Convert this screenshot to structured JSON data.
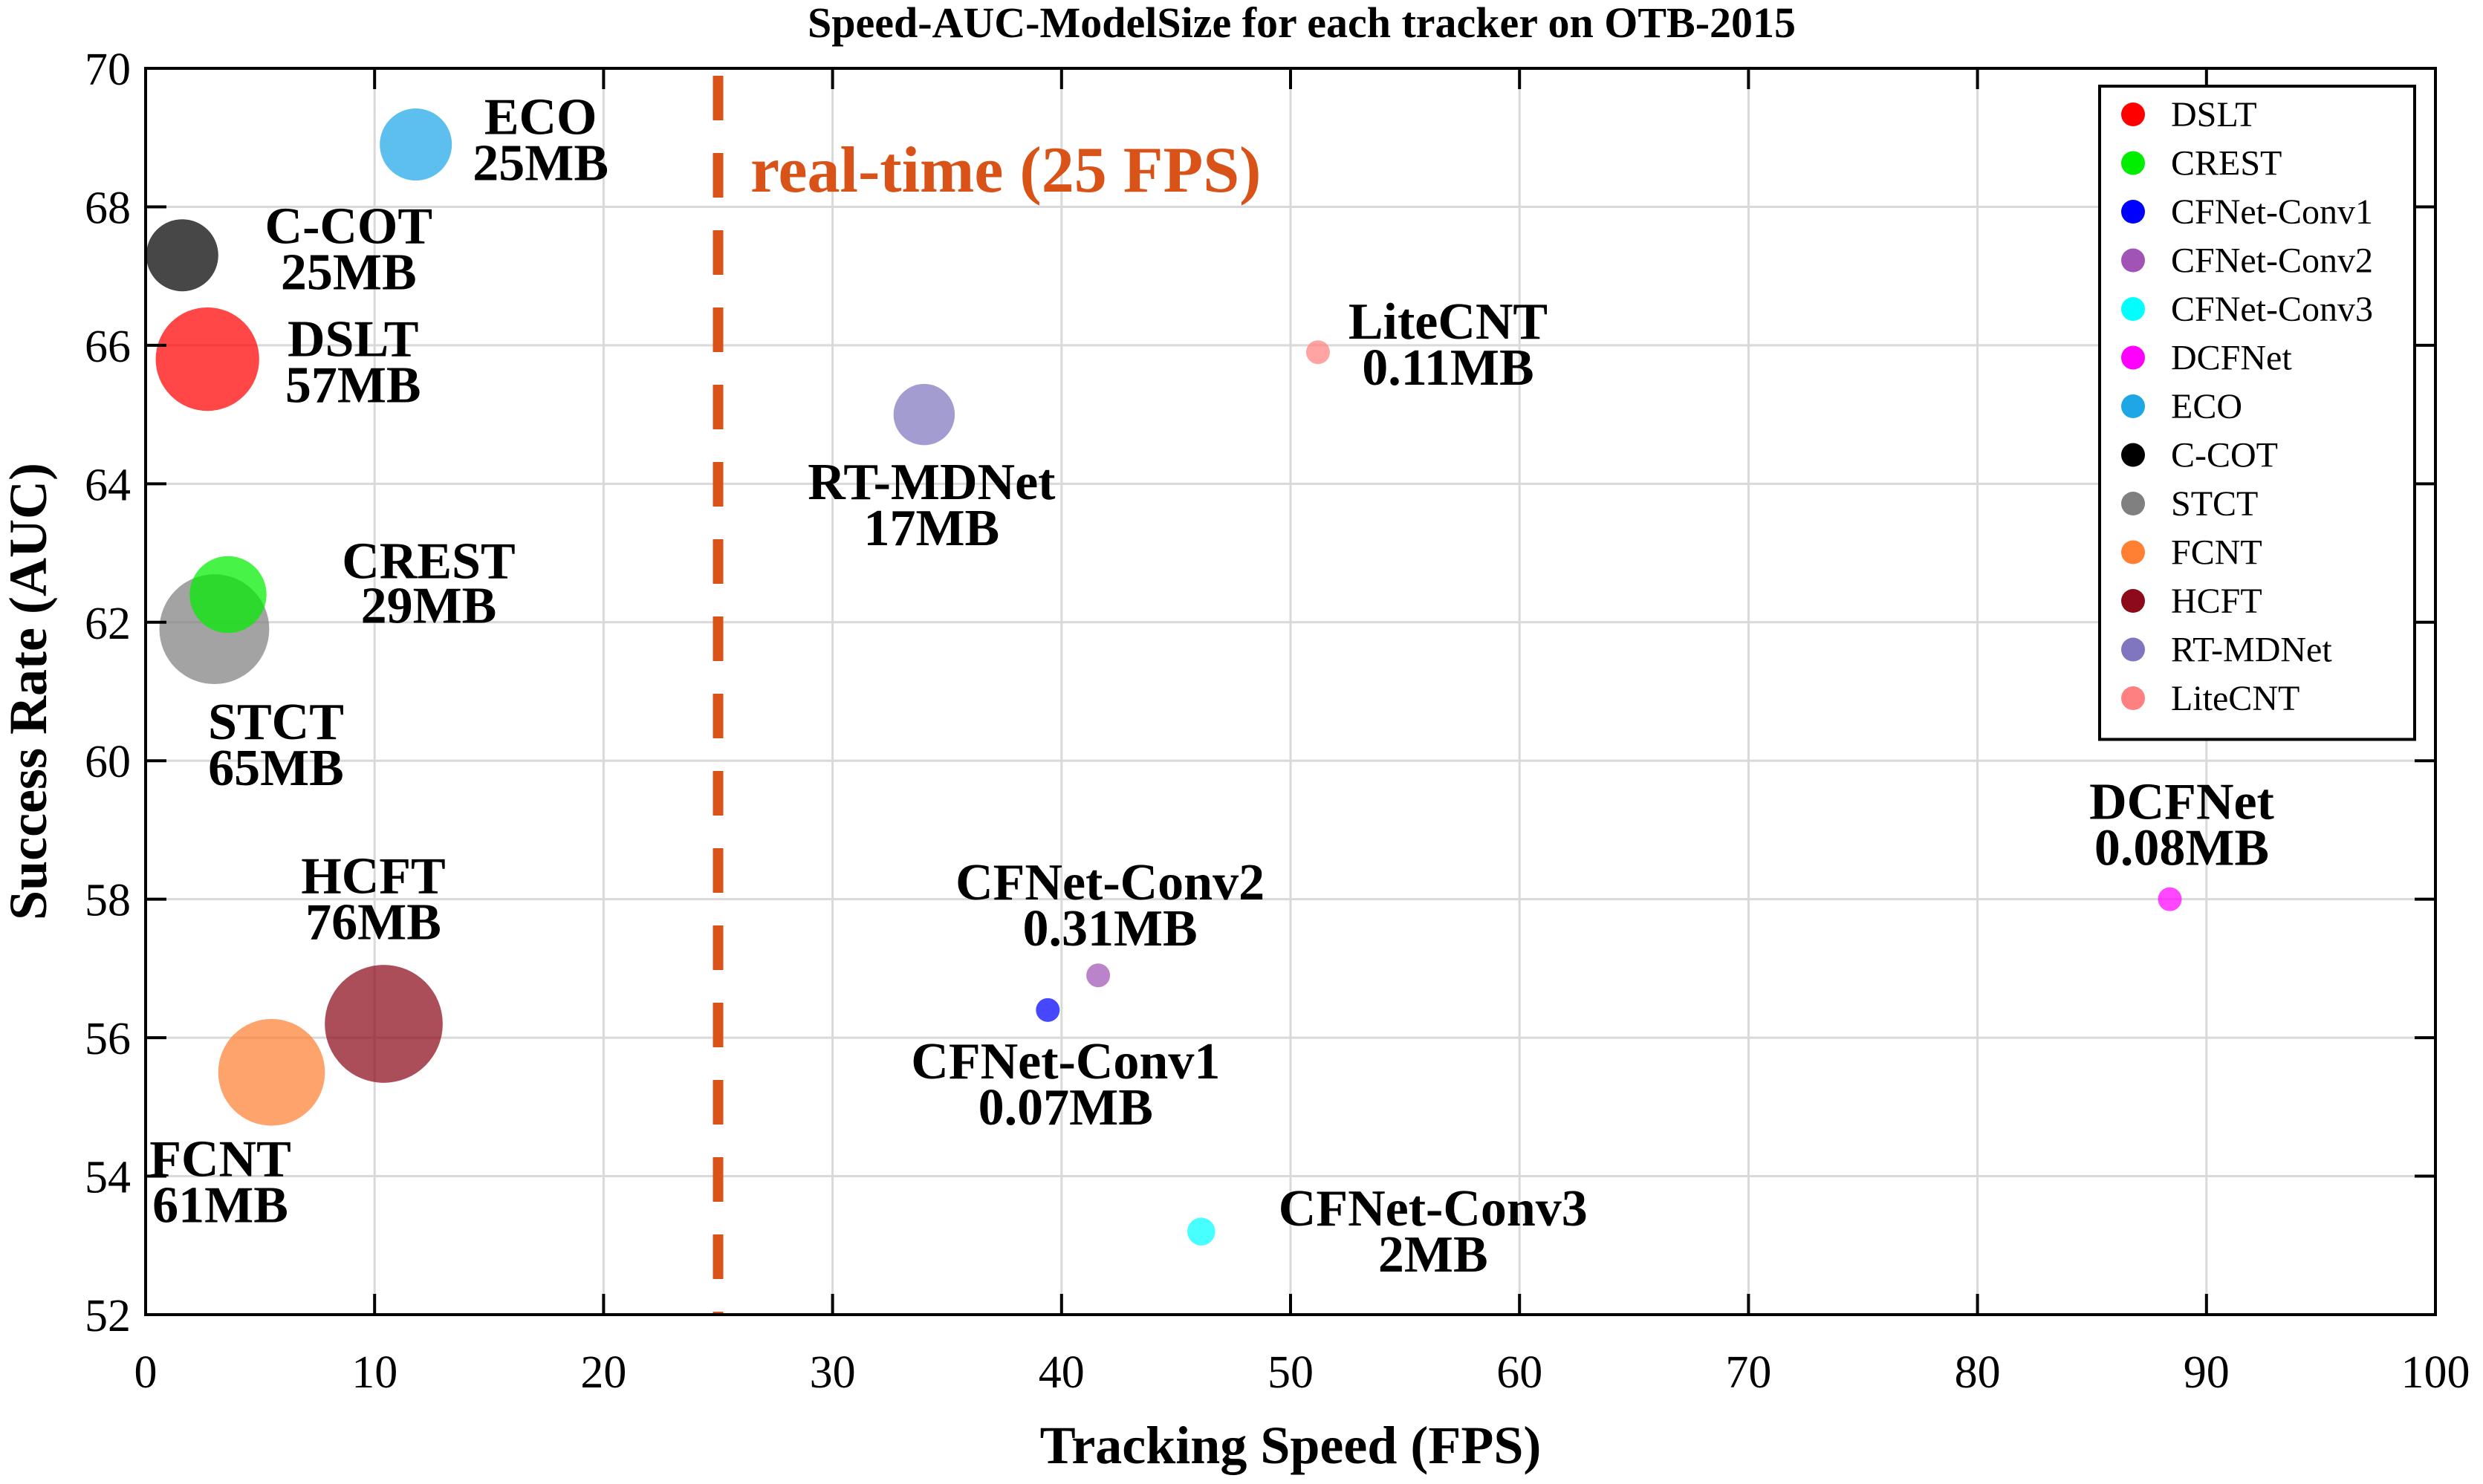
{
  "chart_data": {
    "type": "scatter",
    "title": "Speed-AUC-ModelSize for each tracker on OTB-2015",
    "xlabel": "Tracking Speed (FPS)",
    "ylabel": "Success Rate (AUC)",
    "xlim": [
      0,
      100
    ],
    "ylim": [
      52,
      70
    ],
    "xticks": [
      0,
      10,
      20,
      30,
      40,
      50,
      60,
      70,
      80,
      90,
      100
    ],
    "yticks": [
      52,
      54,
      56,
      58,
      60,
      62,
      64,
      66,
      68,
      70
    ],
    "grid": true,
    "legend_position": "top-right",
    "realtime": {
      "x": 25,
      "label": "real-time (25 FPS)",
      "color": "#d95319"
    },
    "points": [
      {
        "name": "DSLT",
        "size_label": "57MB",
        "size_mb": 57,
        "x": 2.7,
        "y": 65.8,
        "color": "#ff0000"
      },
      {
        "name": "CREST",
        "size_label": "29MB",
        "size_mb": 29,
        "x": 3.6,
        "y": 62.4,
        "color": "#00ee00"
      },
      {
        "name": "CFNet-Conv1",
        "size_label": "0.07MB",
        "size_mb": 0.07,
        "x": 39.4,
        "y": 56.4,
        "color": "#0000ff"
      },
      {
        "name": "CFNet-Conv2",
        "size_label": "0.31MB",
        "size_mb": 0.31,
        "x": 41.6,
        "y": 56.9,
        "color": "#a154b5"
      },
      {
        "name": "CFNet-Conv3",
        "size_label": "2MB",
        "size_mb": 2,
        "x": 46.1,
        "y": 53.2,
        "color": "#00ffff"
      },
      {
        "name": "DCFNet",
        "size_label": "0.08MB",
        "size_mb": 0.08,
        "x": 88.4,
        "y": 58.0,
        "color": "#ff00ff"
      },
      {
        "name": "ECO",
        "size_label": "25MB",
        "size_mb": 25,
        "x": 11.8,
        "y": 68.9,
        "color": "#1fa6e6"
      },
      {
        "name": "C-COT",
        "size_label": "25MB",
        "size_mb": 25,
        "x": 1.6,
        "y": 67.3,
        "color": "#000000"
      },
      {
        "name": "STCT",
        "size_label": "65MB",
        "size_mb": 65,
        "x": 3.0,
        "y": 61.9,
        "color": "#808080"
      },
      {
        "name": "FCNT",
        "size_label": "61MB",
        "size_mb": 61,
        "x": 5.5,
        "y": 55.5,
        "color": "#ff8033"
      },
      {
        "name": "HCFT",
        "size_label": "76MB",
        "size_mb": 76,
        "x": 10.4,
        "y": 56.2,
        "color": "#8c0a1a"
      },
      {
        "name": "RT-MDNet",
        "size_label": "17MB",
        "size_mb": 17,
        "x": 34.0,
        "y": 65.0,
        "color": "#8076bf"
      },
      {
        "name": "LiteCNT",
        "size_label": "0.11MB",
        "size_mb": 0.11,
        "x": 51.2,
        "y": 65.9,
        "color": "#ff8080"
      }
    ]
  }
}
